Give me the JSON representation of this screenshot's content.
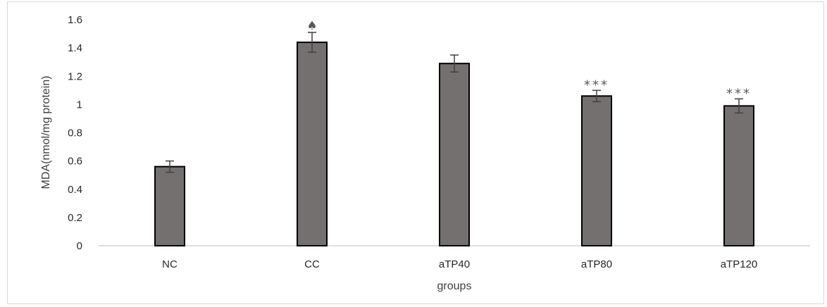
{
  "chart_data": {
    "type": "bar",
    "categories": [
      "NC",
      "CC",
      "aTP40",
      "aTP80",
      "aTP120"
    ],
    "values": [
      0.56,
      1.44,
      1.29,
      1.06,
      0.99
    ],
    "errors": [
      0.04,
      0.07,
      0.06,
      0.04,
      0.05
    ],
    "annotations": [
      "",
      "♠",
      "",
      "***",
      "***"
    ],
    "xlabel": "groups",
    "ylabel": "MDA(nmol/mg protein)",
    "ylim": [
      0,
      1.6
    ],
    "yticks": [
      "0",
      "0.2",
      "0.4",
      "0.6",
      "0.8",
      "1",
      "1.2",
      "1.4",
      "1.6"
    ],
    "grid": false,
    "legend": "none",
    "bar_color": "#757070",
    "bar_edge_color": "#000000",
    "error_color": "#404040"
  }
}
